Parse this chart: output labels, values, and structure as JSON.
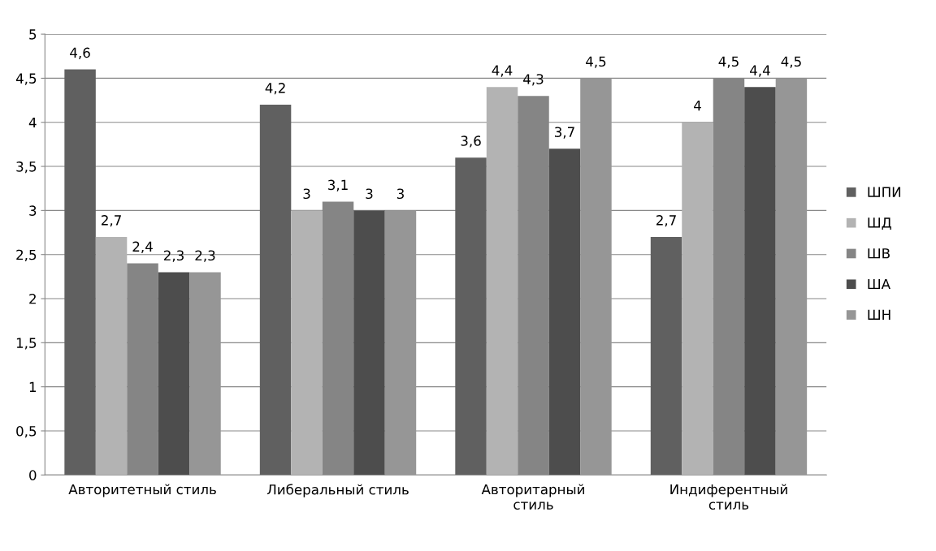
{
  "chart_data": {
    "type": "bar",
    "categories": [
      "Авторитетный стиль",
      "Либеральный стиль",
      "Авторитарный\nстиль",
      "Индиферентный\nстиль"
    ],
    "series": [
      {
        "name": "ШПИ",
        "color": "#606060",
        "values": [
          4.6,
          4.2,
          3.6,
          2.7
        ],
        "value_labels": [
          "4,6",
          "4,2",
          "3,6",
          "2,7"
        ]
      },
      {
        "name": "ШД",
        "color": "#b3b3b3",
        "values": [
          2.7,
          3,
          4.4,
          4
        ],
        "value_labels": [
          "2,7",
          "3",
          "4,4",
          "4"
        ]
      },
      {
        "name": "ШВ",
        "color": "#858585",
        "values": [
          2.4,
          3.1,
          4.3,
          4.5
        ],
        "value_labels": [
          "2,4",
          "3,1",
          "4,3",
          "4,5"
        ]
      },
      {
        "name": "ША",
        "color": "#4d4d4d",
        "values": [
          2.3,
          3,
          3.7,
          4.4
        ],
        "value_labels": [
          "2,3",
          "3",
          "3,7",
          "4,4"
        ]
      },
      {
        "name": "ШН",
        "color": "#969696",
        "values": [
          2.3,
          3,
          4.5,
          4.5
        ],
        "value_labels": [
          "2,3",
          "3",
          "4,5",
          "4,5"
        ]
      }
    ],
    "ylim": [
      0,
      5
    ],
    "yticks": [
      0,
      {
        "value": 0.5,
        "label": "0,5"
      },
      1,
      {
        "value": 1.5,
        "label": "1,5"
      },
      2,
      {
        "value": 2.5,
        "label": "2,5"
      },
      3,
      {
        "value": 3.5,
        "label": "3,5"
      },
      4,
      {
        "value": 4.5,
        "label": "4,5"
      },
      5
    ],
    "grid": "y",
    "legend": "right"
  }
}
